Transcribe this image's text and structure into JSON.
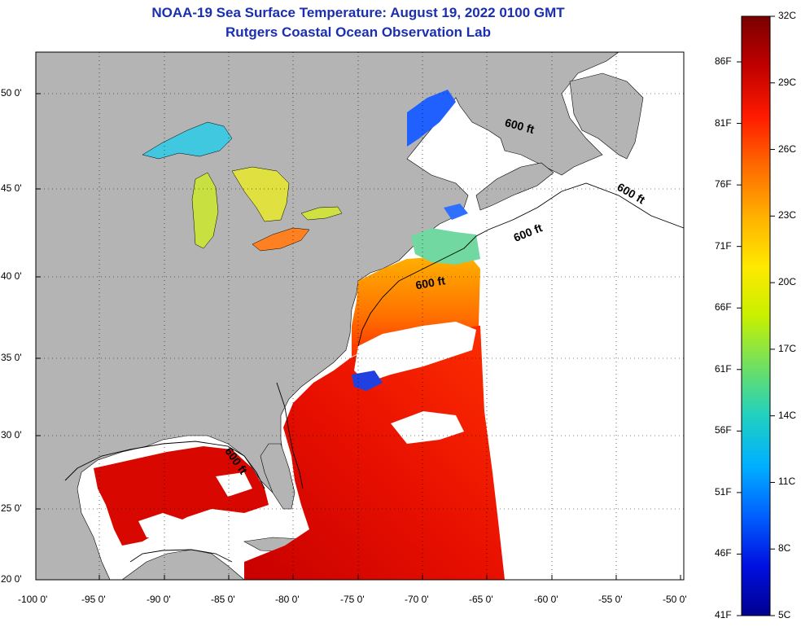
{
  "title_line1": "NOAA-19 Sea Surface Temperature:  August 19, 2022 0100 GMT",
  "title_line2": "Rutgers Coastal Ocean Observation Lab",
  "x_ticks": [
    "-100 0'",
    "-95 0'",
    "-90 0'",
    "-85 0'",
    "-80 0'",
    "-75 0'",
    "-70 0'",
    "-65 0'",
    "-60 0'",
    "-55 0'",
    "-50 0'"
  ],
  "y_ticks": [
    "50 0'",
    "45 0'",
    "40 0'",
    "35 0'",
    "30 0'",
    "25 0'",
    "20 0'"
  ],
  "contour_label": "600 ft",
  "colorbar": {
    "celsius": [
      "32C",
      "29C",
      "26C",
      "23C",
      "20C",
      "17C",
      "14C",
      "11C",
      "8C",
      "5C"
    ],
    "fahrenheit": [
      "86F",
      "81F",
      "76F",
      "71F",
      "66F",
      "61F",
      "56F",
      "51F",
      "46F",
      "41F"
    ],
    "stops": [
      "#7a0000",
      "#c00000",
      "#ff1a00",
      "#ff6a00",
      "#ffb000",
      "#ffe800",
      "#c8f000",
      "#70e060",
      "#20d0c0",
      "#00b0ff",
      "#0060ff",
      "#0010e0",
      "#000090"
    ]
  },
  "colors": {
    "land": "#b4b4b4",
    "ocean_nodata": "#ffffff",
    "title": "#1a2fb0"
  }
}
